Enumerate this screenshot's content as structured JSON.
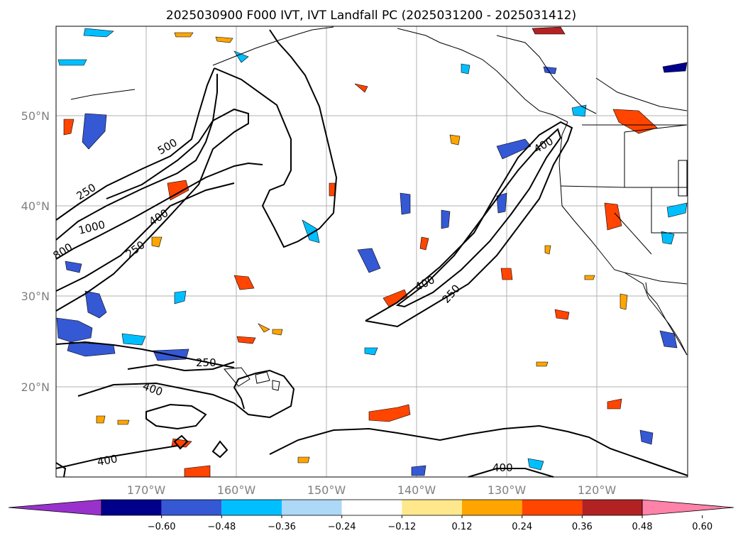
{
  "title": "2025030900 F000 IVT, IVT Landfall PC (2025031200 - 2025031412)",
  "map": {
    "lon_range": [
      -180,
      -110
    ],
    "lat_range": [
      10,
      60
    ],
    "grid": true,
    "lon_ticks": [
      "170°W",
      "160°W",
      "150°W",
      "140°W",
      "130°W",
      "120°W"
    ],
    "lat_ticks": [
      "50°N",
      "40°N",
      "30°N",
      "20°N"
    ]
  },
  "contour_labels": [
    "250",
    "500",
    "1000",
    "400",
    "800",
    "250",
    "400",
    "250",
    "400",
    "400",
    "250",
    "400",
    "400",
    "400"
  ],
  "colorbar": {
    "extend": "both",
    "ticks": [
      "−0.60",
      "−0.48",
      "−0.36",
      "−0.24",
      "−0.12",
      "0.12",
      "0.24",
      "0.36",
      "0.48",
      "0.60"
    ],
    "colors": [
      "#9932cc",
      "#00008b",
      "#3558d4",
      "#00bfff",
      "#add8f6",
      "#ffffff",
      "#ffe88c",
      "#ffa500",
      "#ff4500",
      "#b22222",
      "#ff82a9"
    ]
  },
  "colors": {
    "positive": "#ff4500",
    "negative": "#3558d4",
    "contour": "#000000",
    "coast": "#000000",
    "grid": "#b0b0b0"
  }
}
